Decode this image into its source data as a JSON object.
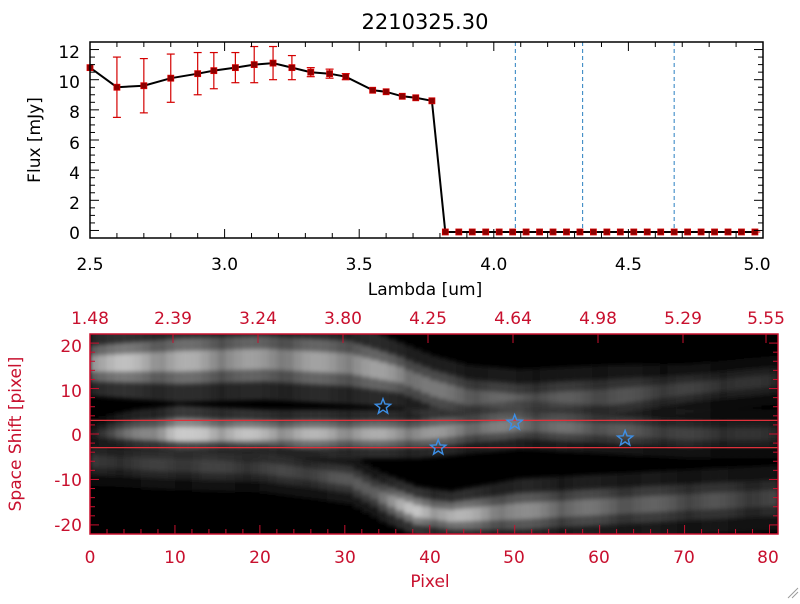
{
  "colors": {
    "axis_top": "#000000",
    "axis_bottom": "#c8102e",
    "data_line": "#000000",
    "error_bar": "#d40000",
    "marker": "#8b0000",
    "dashed_line": "#2a7fc0",
    "star": "#3d8fe6"
  },
  "chart_data": [
    {
      "type": "line",
      "title": "2210325.30",
      "xlabel": "Lambda [um]",
      "ylabel": "Flux [mJy]",
      "xlim": [
        2.5,
        5.0
      ],
      "ylim": [
        -0.5,
        12.5
      ],
      "xticks": [
        "2.5",
        "3.0",
        "3.5",
        "4.0",
        "4.5",
        "5.0"
      ],
      "yticks": [
        "0",
        "2",
        "4",
        "6",
        "8",
        "10",
        "12"
      ],
      "series": [
        {
          "name": "flux",
          "x": [
            2.5,
            2.6,
            2.7,
            2.8,
            2.9,
            2.96,
            3.04,
            3.11,
            3.18,
            3.25,
            3.32,
            3.39,
            3.45,
            3.55,
            3.6,
            3.66,
            3.71,
            3.77,
            3.82,
            3.87,
            3.92,
            3.97,
            4.02,
            4.07,
            4.12,
            4.17,
            4.22,
            4.27,
            4.32,
            4.37,
            4.42,
            4.47,
            4.52,
            4.57,
            4.62,
            4.67,
            4.72,
            4.77,
            4.82,
            4.87,
            4.92,
            4.97
          ],
          "y": [
            10.8,
            9.5,
            9.6,
            10.1,
            10.4,
            10.6,
            10.8,
            11.0,
            11.1,
            10.8,
            10.5,
            10.4,
            10.2,
            9.3,
            9.2,
            8.9,
            8.8,
            8.6,
            -0.1,
            -0.1,
            -0.1,
            -0.1,
            -0.1,
            -0.1,
            -0.1,
            -0.1,
            -0.1,
            -0.1,
            -0.1,
            -0.1,
            -0.1,
            -0.1,
            -0.1,
            -0.1,
            -0.1,
            -0.1,
            -0.1,
            -0.1,
            -0.1,
            -0.1,
            -0.1,
            -0.1
          ],
          "yerr": [
            0,
            2.0,
            1.8,
            1.6,
            1.4,
            1.2,
            1.0,
            1.2,
            1.1,
            0.8,
            0.3,
            0.3,
            0.2,
            0,
            0,
            0,
            0,
            0,
            0,
            0,
            0,
            0,
            0,
            0,
            0,
            0,
            0,
            0,
            0,
            0,
            0,
            0,
            0,
            0,
            0,
            0,
            0,
            0,
            0,
            0,
            0,
            0
          ]
        }
      ],
      "vlines": [
        4.08,
        4.33,
        4.67
      ]
    },
    {
      "type": "heatmap",
      "xlabel": "Pixel",
      "ylabel": "Space Shift [pixel]",
      "xlim": [
        0,
        81
      ],
      "ylim": [
        -22,
        22
      ],
      "xticks": [
        "0",
        "10",
        "20",
        "30",
        "40",
        "50",
        "60",
        "70",
        "80"
      ],
      "yticks": [
        "-20",
        "-10",
        "0",
        "10",
        "20"
      ],
      "top_ticks": [
        "1.48",
        "2.39",
        "3.24",
        "3.80",
        "4.25",
        "4.64",
        "4.98",
        "5.29",
        "5.55"
      ],
      "hlines": [
        3,
        -3
      ],
      "stars": [
        {
          "x": 34.5,
          "y": 6
        },
        {
          "x": 41,
          "y": -3
        },
        {
          "x": 50,
          "y": 2.5
        },
        {
          "x": 63,
          "y": -1
        }
      ],
      "bands": [
        {
          "name": "upper",
          "x": [
            0,
            10,
            20,
            30,
            36,
            40,
            44,
            50,
            60,
            70,
            81
          ],
          "y": [
            15.5,
            16,
            16.5,
            15.5,
            13,
            10,
            8,
            7,
            8,
            10,
            12
          ],
          "w": [
            4,
            5,
            5,
            5,
            4,
            4,
            4,
            4,
            4,
            3,
            3
          ],
          "a": [
            0.9,
            0.8,
            0.7,
            0.75,
            0.7,
            0.55,
            0.5,
            0.45,
            0.4,
            0.3,
            0.2
          ]
        },
        {
          "name": "middle",
          "x": [
            0,
            5,
            10,
            20,
            30,
            38,
            44,
            50,
            60,
            70,
            81
          ],
          "y": [
            0,
            0,
            0,
            0,
            0,
            0,
            1,
            2,
            1,
            0,
            0
          ],
          "w": [
            2,
            3,
            3.5,
            3,
            3,
            3,
            3,
            3,
            3,
            3,
            3
          ],
          "a": [
            0.2,
            0.6,
            1.0,
            0.85,
            0.8,
            0.75,
            0.6,
            0.55,
            0.45,
            0.3,
            0.2
          ]
        },
        {
          "name": "lower",
          "x": [
            0,
            10,
            20,
            30,
            34,
            38,
            42,
            50,
            60,
            70,
            81
          ],
          "y": [
            -6,
            -7,
            -7.5,
            -10,
            -14,
            -17,
            -18,
            -17,
            -16,
            -15,
            -14
          ],
          "w": [
            3,
            3,
            3,
            3,
            3,
            3,
            3,
            4,
            4,
            4,
            4
          ],
          "a": [
            0.25,
            0.3,
            0.3,
            0.4,
            0.6,
            0.95,
            0.85,
            0.65,
            0.5,
            0.4,
            0.3
          ]
        }
      ]
    }
  ]
}
